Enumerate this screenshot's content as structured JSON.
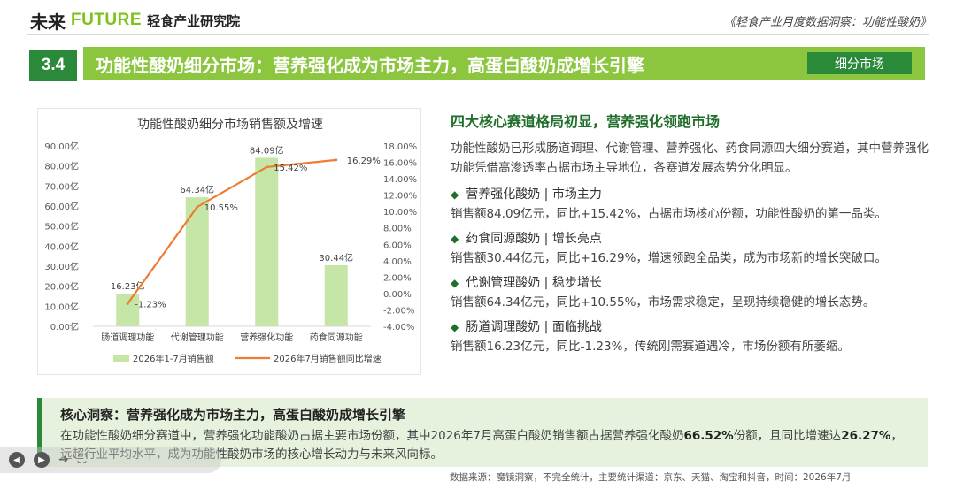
{
  "header": {
    "logo_cn": "未来",
    "logo_en": "FUTURE",
    "logo_org": "轻食产业研究院",
    "report_title": "《轻食产业月度数据洞察：功能性酸奶》"
  },
  "section": {
    "number": "3.4",
    "title": "功能性酸奶细分市场：营养强化成为市场主力，高蛋白酸奶成增长引擎",
    "tag": "细分市场"
  },
  "chart_data": {
    "type": "bar",
    "title": "功能性酸奶细分市场销售额及增速",
    "categories": [
      "肠道调理功能",
      "代谢管理功能",
      "营养强化功能",
      "药食同源功能"
    ],
    "series": [
      {
        "name": "2026年1-7月销售额",
        "type": "bar",
        "values": [
          16.23,
          64.34,
          84.09,
          30.44
        ],
        "labels": [
          "16.23亿",
          "64.34亿",
          "84.09亿",
          "30.44亿"
        ],
        "color": "#c5e6a6"
      },
      {
        "name": "2026年7月销售额同比增速",
        "type": "line",
        "values": [
          -1.23,
          10.55,
          15.42,
          16.29
        ],
        "labels": [
          "-1.23%",
          "10.55%",
          "15.42%",
          "16.29%"
        ],
        "color": "#ed7d31"
      }
    ],
    "y_left_ticks": [
      "90.00亿",
      "80.00亿",
      "70.00亿",
      "60.00亿",
      "50.00亿",
      "40.00亿",
      "30.00亿",
      "20.00亿",
      "10.00亿",
      "0.00亿"
    ],
    "y_right_ticks": [
      "18.00%",
      "16.00%",
      "14.00%",
      "12.00%",
      "10.00%",
      "8.00%",
      "6.00%",
      "4.00%",
      "2.00%",
      "0.00%",
      "-2.00%",
      "-4.00%"
    ],
    "ylim_left": [
      0,
      90
    ],
    "ylim_right": [
      -4,
      18
    ],
    "legend_position": "bottom",
    "grid": false
  },
  "right": {
    "heading": "四大核心赛道格局初显，营养强化领跑市场",
    "intro": "功能性酸奶已形成肠道调理、代谢管理、营养强化、药食同源四大细分赛道，其中营养强化功能凭借高渗透率占据市场主导地位，各赛道发展态势分化明显。",
    "items": [
      {
        "title": "营养强化酸奶 | 市场主力",
        "desc": "销售额84.09亿元，同比+15.42%，占据市场核心份额，功能性酸奶的第一品类。"
      },
      {
        "title": "药食同源酸奶 | 增长亮点",
        "desc": "销售额30.44亿元，同比+16.29%，增速领跑全品类，成为市场新的增长突破口。"
      },
      {
        "title": "代谢管理酸奶 | 稳步增长",
        "desc": "销售额64.34亿元，同比+10.55%，市场需求稳定，呈现持续稳健的增长态势。"
      },
      {
        "title": "肠道调理酸奶 | 面临挑战",
        "desc": "销售额16.23亿元，同比-1.23%，传统刚需赛道遇冷，市场份额有所萎缩。"
      }
    ]
  },
  "insight": {
    "title": "核心洞察：营养强化成为市场主力，高蛋白酸奶成增长引擎",
    "text_1": "在功能性酸奶细分赛道中，营养强化功能酸奶占据主要市场份额，其中2026年7月高蛋白酸奶销售额占据营养强化酸奶",
    "bold_1": "66.52%",
    "text_2": "份额，且同比增速达",
    "bold_2": "26.27%",
    "text_3": "，远超行业平均水平，成为功能性酸奶市场的核心增长动力与未来风向标。"
  },
  "source": "数据来源：魔镜洞察，不完全统计，主要统计渠道：京东、天猫、淘宝和抖音，时间：2026年7月",
  "icons": [
    "diamond-bullet-icon",
    "prev-icon",
    "play-icon",
    "next-icon",
    "fullscreen-icon"
  ]
}
